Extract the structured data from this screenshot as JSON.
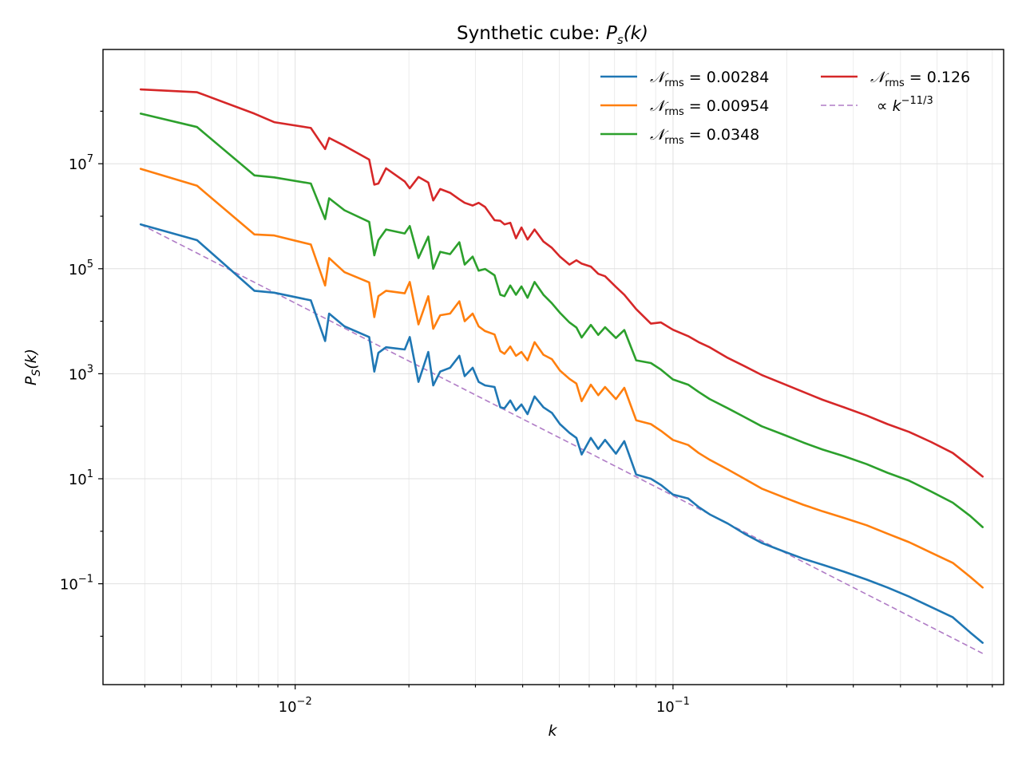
{
  "chart_data": {
    "type": "line",
    "title": "Synthetic cube: P_s(k)",
    "title_parts": {
      "prefix": "Synthetic cube: ",
      "p": "P",
      "sub": "s",
      "suffix": "(k)"
    },
    "xlabel": "k",
    "ylabel": "P_S(k)",
    "ylabel_parts": {
      "p": "P",
      "sub": "S",
      "suffix": "(k)"
    },
    "xscale": "log",
    "yscale": "log",
    "xlim": [
      0.0031,
      0.75
    ],
    "ylim": [
      0.0012,
      1500000000
    ],
    "grid": true,
    "legend_position": "top-right",
    "legend_columns": 2,
    "x_ticks": [
      {
        "value": 0.01,
        "base": "10",
        "exp": "−2"
      },
      {
        "value": 0.1,
        "base": "10",
        "exp": "−1"
      }
    ],
    "y_ticks": [
      {
        "value": 0.1,
        "base": "10",
        "exp": "−1"
      },
      {
        "value": 10,
        "base": "10",
        "exp": "1"
      },
      {
        "value": 1000,
        "base": "10",
        "exp": "3"
      },
      {
        "value": 100000,
        "base": "10",
        "exp": "5"
      },
      {
        "value": 10000000,
        "base": "10",
        "exp": "7"
      }
    ],
    "colors": {
      "blue": "#1f77b4",
      "orange": "#ff7f0e",
      "green": "#2ca02c",
      "red": "#d62728",
      "reference": "#b07cc6"
    },
    "series": [
      {
        "name": "N_rms = 0.00284",
        "label_value": "0.00284",
        "color": "#1f77b4",
        "x": [
          0.0039,
          0.0055,
          0.0078,
          0.0088,
          0.011,
          0.012,
          0.0123,
          0.0135,
          0.0157,
          0.0162,
          0.0166,
          0.0174,
          0.0195,
          0.0201,
          0.0212,
          0.0225,
          0.0232,
          0.0242,
          0.0257,
          0.0272,
          0.0281,
          0.0295,
          0.0306,
          0.0318,
          0.0337,
          0.0349,
          0.0358,
          0.0371,
          0.0384,
          0.0397,
          0.0412,
          0.043,
          0.0454,
          0.0478,
          0.0502,
          0.0532,
          0.0555,
          0.0573,
          0.0606,
          0.0634,
          0.0661,
          0.0706,
          0.0743,
          0.0799,
          0.0874,
          0.0929,
          0.0999,
          0.1097,
          0.1169,
          0.125,
          0.1397,
          0.1545,
          0.1716,
          0.1952,
          0.2212,
          0.2488,
          0.2832,
          0.3256,
          0.3694,
          0.4216,
          0.4823,
          0.5502,
          0.6121,
          0.66
        ],
        "y": [
          700000,
          350000,
          38000,
          35000,
          25000,
          4200,
          14000,
          8000,
          5000,
          1100,
          2500,
          3200,
          2900,
          5000,
          700,
          2600,
          600,
          1100,
          1300,
          2200,
          900,
          1300,
          700,
          600,
          560,
          230,
          220,
          310,
          200,
          260,
          170,
          370,
          230,
          180,
          110,
          75,
          60,
          29,
          60,
          37,
          55,
          30,
          52,
          12,
          10,
          7.6,
          5,
          4.2,
          2.9,
          2.1,
          1.4,
          0.9,
          0.6,
          0.42,
          0.3,
          0.23,
          0.17,
          0.12,
          0.085,
          0.057,
          0.036,
          0.023,
          0.0118,
          0.0075
        ]
      },
      {
        "name": "N_rms = 0.00954",
        "label_value": "0.00954",
        "color": "#ff7f0e",
        "x": [
          0.0039,
          0.0055,
          0.0078,
          0.0088,
          0.011,
          0.012,
          0.0123,
          0.0135,
          0.0157,
          0.0162,
          0.0166,
          0.0174,
          0.0195,
          0.0201,
          0.0212,
          0.0225,
          0.0232,
          0.0242,
          0.0257,
          0.0272,
          0.0281,
          0.0295,
          0.0306,
          0.0318,
          0.0337,
          0.0349,
          0.0358,
          0.0371,
          0.0384,
          0.0397,
          0.0412,
          0.043,
          0.0454,
          0.0478,
          0.0502,
          0.0532,
          0.0555,
          0.0573,
          0.0606,
          0.0634,
          0.0661,
          0.0706,
          0.0743,
          0.0799,
          0.0874,
          0.0929,
          0.0999,
          0.1097,
          0.1169,
          0.125,
          0.1397,
          0.1545,
          0.1716,
          0.1952,
          0.2212,
          0.2488,
          0.2832,
          0.3256,
          0.3694,
          0.4216,
          0.4823,
          0.5502,
          0.6121,
          0.66
        ],
        "y": [
          8000000,
          3800000,
          450000,
          430000,
          290000,
          48000,
          160000,
          86000,
          55000,
          12000,
          30000,
          38000,
          34000,
          56000,
          8700,
          30000,
          7200,
          13000,
          14000,
          24000,
          10000,
          14000,
          8000,
          6500,
          5600,
          2700,
          2400,
          3300,
          2200,
          2600,
          1800,
          4000,
          2300,
          1900,
          1150,
          800,
          650,
          300,
          620,
          390,
          560,
          330,
          540,
          130,
          110,
          82,
          55,
          44,
          31,
          23,
          15,
          10,
          6.5,
          4.5,
          3.2,
          2.4,
          1.8,
          1.3,
          0.9,
          0.62,
          0.39,
          0.25,
          0.135,
          0.085
        ]
      },
      {
        "name": "N_rms = 0.0348",
        "label_value": "0.0348",
        "color": "#2ca02c",
        "x": [
          0.0039,
          0.0055,
          0.0078,
          0.0088,
          0.011,
          0.012,
          0.0123,
          0.0135,
          0.0157,
          0.0162,
          0.0166,
          0.0174,
          0.0195,
          0.0201,
          0.0212,
          0.0225,
          0.0232,
          0.0242,
          0.0257,
          0.0272,
          0.0281,
          0.0295,
          0.0306,
          0.0318,
          0.0337,
          0.0349,
          0.0358,
          0.0371,
          0.0384,
          0.0397,
          0.0412,
          0.043,
          0.0454,
          0.0478,
          0.0502,
          0.0532,
          0.0555,
          0.0573,
          0.0606,
          0.0634,
          0.0661,
          0.0706,
          0.0743,
          0.0799,
          0.0874,
          0.0929,
          0.0999,
          0.1097,
          0.1169,
          0.125,
          0.1397,
          0.1545,
          0.1716,
          0.1952,
          0.2212,
          0.2488,
          0.2832,
          0.3256,
          0.3694,
          0.4216,
          0.4823,
          0.5502,
          0.6121,
          0.66
        ],
        "y": [
          90000000,
          50000000,
          6000000,
          5500000,
          4200000,
          880000,
          2200000,
          1300000,
          780000,
          180000,
          350000,
          560000,
          470000,
          650000,
          160000,
          410000,
          100000,
          210000,
          190000,
          320000,
          120000,
          170000,
          92000,
          99000,
          75000,
          32000,
          30000,
          48000,
          32000,
          46000,
          28000,
          56000,
          32000,
          22000,
          14500,
          9500,
          7600,
          4900,
          8500,
          5500,
          7700,
          4800,
          6800,
          1800,
          1600,
          1200,
          780,
          620,
          450,
          330,
          220,
          150,
          100,
          70,
          49,
          36,
          27,
          19,
          13,
          9.2,
          5.7,
          3.5,
          1.95,
          1.2
        ]
      },
      {
        "name": "N_rms = 0.126",
        "label_value": "0.126",
        "color": "#d62728",
        "x": [
          0.0039,
          0.0055,
          0.0078,
          0.0088,
          0.011,
          0.012,
          0.0123,
          0.0135,
          0.0157,
          0.0162,
          0.0166,
          0.0174,
          0.0195,
          0.0201,
          0.0212,
          0.0225,
          0.0232,
          0.0242,
          0.0257,
          0.0272,
          0.0281,
          0.0295,
          0.0306,
          0.0318,
          0.0337,
          0.0349,
          0.0358,
          0.0371,
          0.0384,
          0.0397,
          0.0412,
          0.043,
          0.0454,
          0.0478,
          0.0502,
          0.0532,
          0.0555,
          0.0573,
          0.0606,
          0.0634,
          0.0661,
          0.0706,
          0.0743,
          0.0799,
          0.0874,
          0.0929,
          0.0999,
          0.1097,
          0.1169,
          0.125,
          0.1397,
          0.1545,
          0.1716,
          0.1952,
          0.2212,
          0.2488,
          0.2832,
          0.3256,
          0.3694,
          0.4216,
          0.4823,
          0.5502,
          0.6121,
          0.66
        ],
        "y": [
          260000000,
          230000000,
          90000000,
          62000000,
          48000000,
          19000000,
          31000000,
          22000000,
          12000000,
          4000000,
          4200000,
          8200000,
          4600000,
          3400000,
          5600000,
          4400000,
          2000000,
          3300000,
          2800000,
          2100000,
          1800000,
          1600000,
          1800000,
          1500000,
          840000,
          820000,
          700000,
          750000,
          380000,
          610000,
          360000,
          560000,
          330000,
          250000,
          170000,
          120000,
          145000,
          125000,
          110000,
          80000,
          72000,
          45000,
          32000,
          17000,
          9000,
          9500,
          6900,
          5200,
          4000,
          3200,
          2000,
          1400,
          950,
          650,
          450,
          320,
          230,
          160,
          110,
          78,
          50,
          31,
          17,
          11
        ]
      }
    ],
    "reference_line": {
      "label": "∝ k^{−11/3}",
      "label_prefix": "∝ ",
      "label_base": "k",
      "label_exp": "−11/3",
      "color": "#b07cc6",
      "slope": -3.6667,
      "x_start": 0.0039,
      "y_start": 700000,
      "x_end": 0.66
    },
    "legend": {
      "symbol": "𝒩",
      "subscript": "rms",
      "equals": " = "
    }
  }
}
